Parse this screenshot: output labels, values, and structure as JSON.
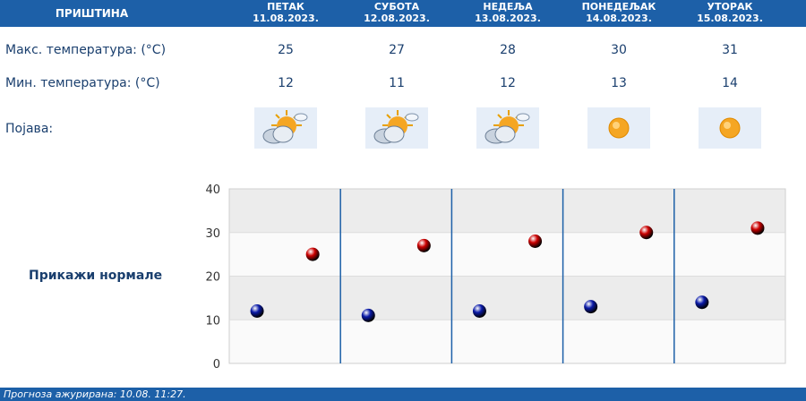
{
  "station": "ПРИШТИНА",
  "days": [
    {
      "name": "ПЕТАК",
      "date": "11.08.2023.",
      "max": "25",
      "min": "12",
      "icon": "sun-cloud-icon"
    },
    {
      "name": "СУБОТА",
      "date": "12.08.2023.",
      "max": "27",
      "min": "11",
      "icon": "sun-cloud-icon"
    },
    {
      "name": "НЕДЕЉА",
      "date": "13.08.2023.",
      "max": "28",
      "min": "12",
      "icon": "sun-cloud-icon"
    },
    {
      "name": "ПОНЕДЕЉАК",
      "date": "14.08.2023.",
      "max": "30",
      "min": "13",
      "icon": "sun-icon"
    },
    {
      "name": "УТОРАК",
      "date": "15.08.2023.",
      "max": "31",
      "min": "14",
      "icon": "sun-icon"
    }
  ],
  "labels": {
    "max": "Макс. температура: (°C)",
    "min": "Мин. температура: (°C)",
    "phenomenon": "Појава:"
  },
  "normals_link": "Прикажи нормале",
  "footer": "Прогноза ажурирана:  10.08.  11:27.",
  "colors": {
    "header": "#1d60a8",
    "max_point": "#cc0000",
    "min_point": "#0a1aa8"
  },
  "chart_data": {
    "type": "scatter",
    "categories": [
      "ПЕТАК",
      "СУБОТА",
      "НЕДЕЉА",
      "ПОНЕДЕЉАК",
      "УТОРАК"
    ],
    "series": [
      {
        "values": [
          25,
          27,
          28,
          30,
          31
        ],
        "color": "#cc0000"
      },
      {
        "values": [
          12,
          11,
          12,
          13,
          14
        ],
        "color": "#0a1aa8"
      }
    ],
    "ylim": [
      0,
      40
    ],
    "yticks": [
      "0",
      "10",
      "20",
      "30",
      "40"
    ],
    "grid": true
  }
}
